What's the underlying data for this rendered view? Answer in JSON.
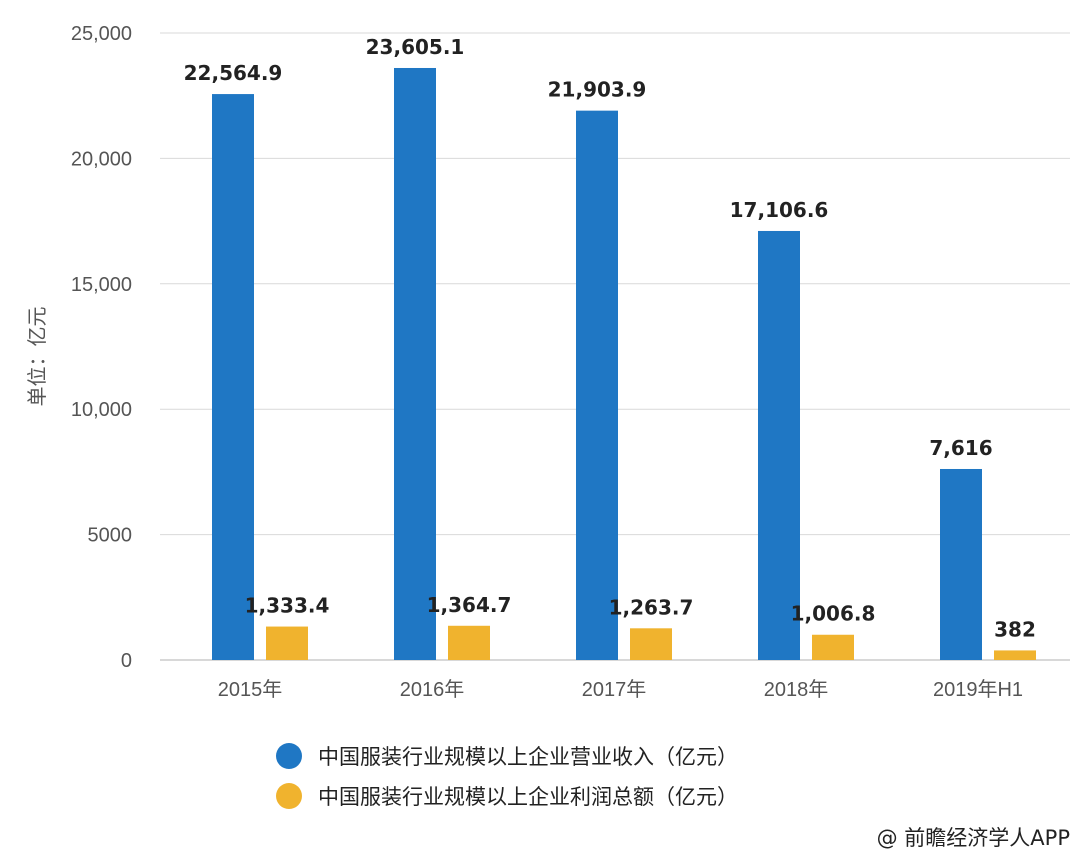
{
  "chart_data": {
    "type": "bar",
    "categories": [
      "2015年",
      "2016年",
      "2017年",
      "2018年",
      "2019年H1"
    ],
    "series": [
      {
        "name": "中国服装行业规模以上企业营业收入（亿元）",
        "values": [
          22564.9,
          23605.1,
          21903.9,
          17106.6,
          7616
        ],
        "labels": [
          "22,564.9",
          "23,605.1",
          "21,903.9",
          "17,106.6",
          "7,616"
        ],
        "color": "#1f77c4"
      },
      {
        "name": "中国服装行业规模以上企业利润总额（亿元）",
        "values": [
          1333.4,
          1364.7,
          1263.7,
          1006.8,
          382
        ],
        "labels": [
          "1,333.4",
          "1,364.7",
          "1,263.7",
          "1,006.8",
          "382"
        ],
        "color": "#f0b32e"
      }
    ],
    "ylabel": "单位：亿元",
    "ylim": [
      0,
      25000
    ],
    "yticks": [
      0,
      5000,
      10000,
      15000,
      20000,
      25000
    ],
    "ytick_labels": [
      "0",
      "5000",
      "10,000",
      "15,000",
      "20,000",
      "25,000"
    ],
    "grid": true,
    "legend_position": "bottom"
  },
  "credit": "@ 前瞻经济学人APP"
}
